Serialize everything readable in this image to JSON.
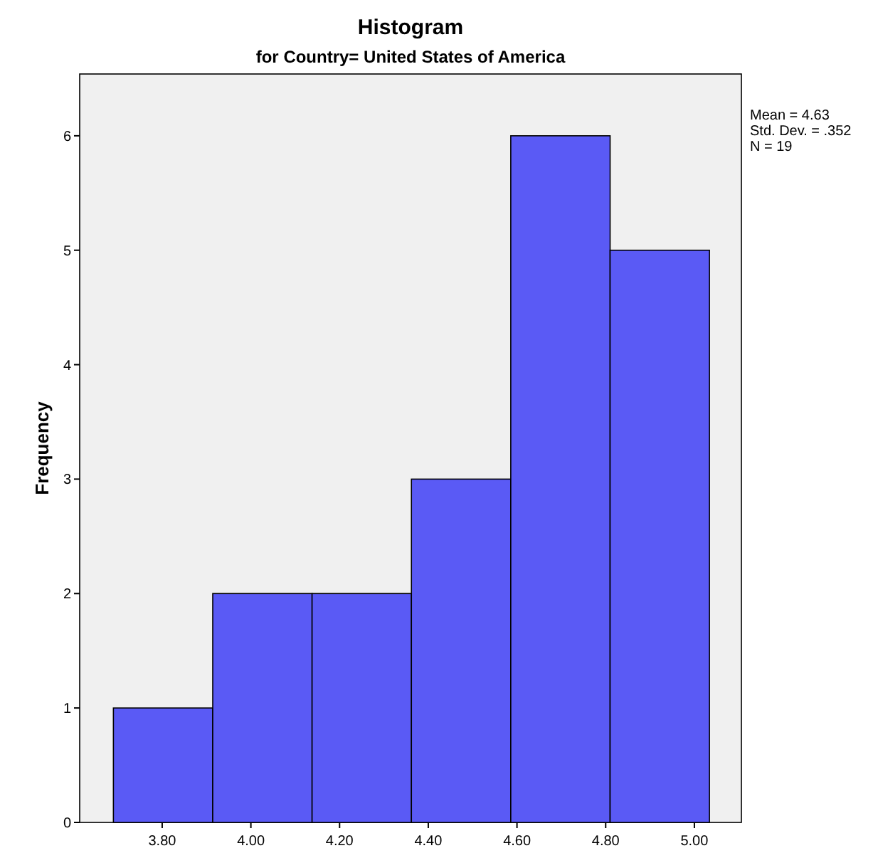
{
  "chart_data": {
    "type": "histogram",
    "title": "Histogram",
    "subtitle": "for Country= United States of America",
    "ylabel": "Frequency",
    "bins": [
      3.69,
      3.914,
      4.138,
      4.362,
      4.586,
      4.81,
      5.034
    ],
    "values": [
      1,
      2,
      2,
      3,
      6,
      5
    ],
    "color": "#5a5af5",
    "xlim": [
      3.614,
      5.106
    ],
    "ylim": [
      0,
      6.54
    ],
    "xticks": [
      {
        "value": 3.8,
        "label": "3.80"
      },
      {
        "value": 4.0,
        "label": "4.00"
      },
      {
        "value": 4.2,
        "label": "4.20"
      },
      {
        "value": 4.4,
        "label": "4.40"
      },
      {
        "value": 4.6,
        "label": "4.60"
      },
      {
        "value": 4.8,
        "label": "4.80"
      },
      {
        "value": 5.0,
        "label": "5.00"
      }
    ],
    "yticks": [
      0,
      1,
      2,
      3,
      4,
      5,
      6
    ],
    "annotations": [
      "Mean = 4.63",
      "Std. Dev. = .352",
      "N = 19"
    ]
  }
}
